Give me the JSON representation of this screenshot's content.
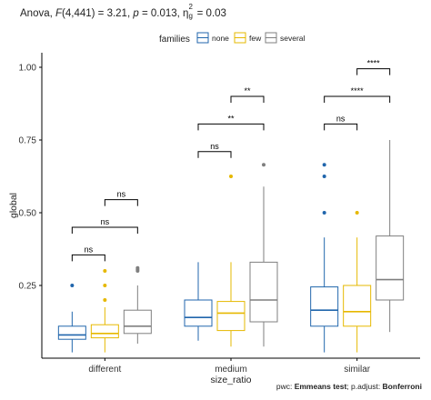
{
  "title": {
    "prefix": "Anova, ",
    "stat": "F",
    "df": "(4,441) = 3.21, ",
    "p_sym": "p",
    "p_rest": " = 0.013, ",
    "eta": "η",
    "eta_sub": "g",
    "eta_sup": "2",
    "eta_rest": " = 0.03"
  },
  "caption": {
    "prefix": "pwc: ",
    "test": "Emmeans test",
    "mid": "; p.adjust: ",
    "adjust": "Bonferroni"
  },
  "chart_data": {
    "type": "boxplot",
    "xlabel": "size_ratio",
    "ylabel": "global",
    "ylim": [
      0,
      1.05
    ],
    "y_ticks": [
      "0.25",
      "0.50",
      "0.75",
      "1.00"
    ],
    "categories": [
      "different",
      "medium",
      "similar"
    ],
    "legend": {
      "title": "families",
      "placement": "top",
      "entries": [
        "none",
        "few",
        "several"
      ]
    },
    "colors": {
      "none": "#2166ac",
      "few": "#e6b800",
      "several": "#7f7f7f"
    },
    "series": [
      {
        "name": "none",
        "boxes": [
          {
            "q1": 0.065,
            "median": 0.08,
            "q3": 0.11,
            "whisker_low": 0.02,
            "whisker_high": 0.16,
            "outliers": [
              0.25
            ]
          },
          {
            "q1": 0.11,
            "median": 0.14,
            "q3": 0.2,
            "whisker_low": 0.06,
            "whisker_high": 0.33,
            "outliers": []
          },
          {
            "q1": 0.11,
            "median": 0.165,
            "q3": 0.245,
            "whisker_low": 0.02,
            "whisker_high": 0.415,
            "outliers": [
              0.5,
              0.625,
              0.665
            ]
          }
        ]
      },
      {
        "name": "few",
        "boxes": [
          {
            "q1": 0.07,
            "median": 0.085,
            "q3": 0.115,
            "whisker_low": 0.02,
            "whisker_high": 0.175,
            "outliers": [
              0.2,
              0.25,
              0.3
            ]
          },
          {
            "q1": 0.095,
            "median": 0.155,
            "q3": 0.195,
            "whisker_low": 0.04,
            "whisker_high": 0.33,
            "outliers": [
              0.625
            ]
          },
          {
            "q1": 0.11,
            "median": 0.16,
            "q3": 0.25,
            "whisker_low": 0.02,
            "whisker_high": 0.415,
            "outliers": [
              0.5
            ]
          }
        ]
      },
      {
        "name": "several",
        "boxes": [
          {
            "q1": 0.085,
            "median": 0.11,
            "q3": 0.165,
            "whisker_low": 0.05,
            "whisker_high": 0.25,
            "outliers": [
              0.3,
              0.305,
              0.31
            ]
          },
          {
            "q1": 0.125,
            "median": 0.2,
            "q3": 0.33,
            "whisker_low": 0.04,
            "whisker_high": 0.59,
            "outliers": [
              0.665
            ]
          },
          {
            "q1": 0.2,
            "median": 0.27,
            "q3": 0.42,
            "whisker_low": 0.09,
            "whisker_high": 0.75,
            "outliers": []
          }
        ]
      }
    ],
    "significance": [
      {
        "category": "different",
        "from": "none",
        "to": "few",
        "y": 0.355,
        "label": "ns"
      },
      {
        "category": "different",
        "from": "none",
        "to": "several",
        "y": 0.45,
        "label": "ns"
      },
      {
        "category": "different",
        "from": "few",
        "to": "several",
        "y": 0.545,
        "label": "ns"
      },
      {
        "category": "medium",
        "from": "none",
        "to": "few",
        "y": 0.71,
        "label": "ns"
      },
      {
        "category": "medium",
        "from": "none",
        "to": "several",
        "y": 0.805,
        "label": "**"
      },
      {
        "category": "medium",
        "from": "few",
        "to": "several",
        "y": 0.9,
        "label": "**"
      },
      {
        "category": "similar",
        "from": "none",
        "to": "few",
        "y": 0.805,
        "label": "ns"
      },
      {
        "category": "similar",
        "from": "none",
        "to": "several",
        "y": 0.9,
        "label": "****"
      },
      {
        "category": "similar",
        "from": "few",
        "to": "several",
        "y": 0.995,
        "label": "****"
      }
    ]
  }
}
